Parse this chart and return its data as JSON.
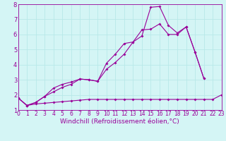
{
  "xlabel": "Windchill (Refroidissement éolien,°C)",
  "background_color": "#d4f5f5",
  "line_color": "#990099",
  "grid_color": "#b8e8e8",
  "xmin": 0,
  "xmax": 23,
  "ymin": 1,
  "ymax": 8,
  "line1_x": [
    0,
    1,
    2,
    3,
    4,
    5,
    6,
    7,
    8,
    9,
    10,
    11,
    12,
    13,
    14,
    15,
    16,
    17,
    18,
    19,
    20,
    21,
    22,
    23
  ],
  "line1_y": [
    1.8,
    1.3,
    1.4,
    1.45,
    1.5,
    1.55,
    1.6,
    1.65,
    1.7,
    1.7,
    1.7,
    1.7,
    1.7,
    1.7,
    1.7,
    1.7,
    1.7,
    1.7,
    1.7,
    1.7,
    1.7,
    1.7,
    1.7,
    2.0
  ],
  "line2_x": [
    0,
    1,
    2,
    3,
    4,
    5,
    6,
    7,
    8,
    9,
    10,
    11,
    12,
    13,
    14,
    15,
    16,
    17,
    18,
    19,
    20,
    21
  ],
  "line2_y": [
    1.8,
    1.3,
    1.5,
    1.9,
    2.2,
    2.5,
    2.7,
    3.05,
    3.0,
    2.9,
    3.7,
    4.15,
    4.7,
    5.5,
    5.9,
    7.8,
    7.85,
    6.6,
    6.1,
    6.5,
    4.85,
    3.1
  ],
  "line3_x": [
    0,
    1,
    2,
    3,
    4,
    5,
    6,
    7,
    8,
    9,
    10,
    11,
    12,
    13,
    14,
    15,
    16,
    17,
    18,
    19,
    20,
    21
  ],
  "line3_y": [
    1.8,
    1.3,
    1.5,
    1.9,
    2.45,
    2.7,
    2.85,
    3.05,
    3.0,
    2.9,
    4.1,
    4.7,
    5.4,
    5.5,
    6.3,
    6.35,
    6.7,
    6.0,
    6.0,
    6.5,
    4.85,
    3.1
  ],
  "xtick_fontsize": 5.5,
  "ytick_fontsize": 6.0,
  "xlabel_fontsize": 6.5,
  "marker_size": 2.0,
  "line_width": 0.8
}
